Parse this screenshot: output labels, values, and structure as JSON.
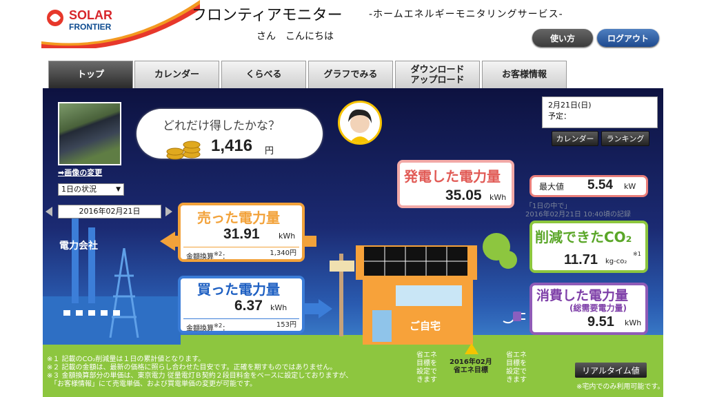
{
  "header": {
    "logo_line1": "SOLAR",
    "logo_line2": "FRONTIER",
    "title": "フロンティアモニター",
    "subtitle": "-ホームエネルギーモニタリングサービス-",
    "greeting": "さん　こんにちは",
    "help_label": "使い方",
    "logout_label": "ログアウト"
  },
  "tabs": [
    {
      "label": "トップ",
      "active": true
    },
    {
      "label": "カレンダー"
    },
    {
      "label": "くらべる"
    },
    {
      "label": "グラフでみる"
    },
    {
      "label": "ダウンロード\nアップロード"
    },
    {
      "label": "お客様情報"
    }
  ],
  "left_panel": {
    "photo_link": "画像の変更",
    "period_select": "1日の状況",
    "date": "2016年02月21日",
    "utility_label": "電力会社"
  },
  "bubble": {
    "question": "どれだけ得したかな？",
    "amount": "1,416",
    "unit": "円"
  },
  "schedule": {
    "date": "2月21日(日)",
    "plan_label": "予定：",
    "calendar_btn": "カレンダー",
    "ranking_btn": "ランキング"
  },
  "generation": {
    "title": "発電した電力量",
    "value": "35.05",
    "unit": "kWh",
    "max_label": "最大値",
    "max_value": "5.54",
    "max_unit": "kW",
    "note_line1": "「1日の中で」",
    "note_line2": "2016年02月21日 10:40頃の記録"
  },
  "sold": {
    "title": "売った電力量",
    "value": "31.91",
    "unit": "kWh",
    "money_label": "金額換算",
    "money_mark": "※2",
    "money_value": "1,340",
    "money_unit": "円"
  },
  "bought": {
    "title": "買った電力量",
    "value": "6.37",
    "unit": "kWh",
    "money_label": "金額換算",
    "money_mark": "※2",
    "money_value": "153",
    "money_unit": "円"
  },
  "co2": {
    "title": "削減できたCO₂",
    "mark": "※1",
    "value": "11.71",
    "unit": "kg-co₂"
  },
  "consumption": {
    "title": "消費した電力量",
    "subtitle": "(総需要電力量)",
    "value": "9.51",
    "unit": "kWh"
  },
  "house_label": "ご自宅",
  "notes": [
    "※１ 記載のCO₂削減量は１日の累計値となります。",
    "※２ 記載の金額は、最新の価格に照らし合わせた目安です。正確を期すものではありません。",
    "※３ 金額換算部分の単価は、東京電力 従量電灯Ｂ契約２段目料金をベースに設定しておりますが、",
    "　「お客様情報」にて売電単価、および買電単価の変更が可能です。"
  ],
  "eco": {
    "left_text": "省エネ\n目標を\n設定で\nきます",
    "mid_line1": "2016年02月",
    "mid_line2": "省エネ目標",
    "right_text": "省エネ\n目標を\n設定で\nきます"
  },
  "realtime": {
    "button": "リアルタイム値",
    "note": "※宅内でのみ利用可能です。"
  }
}
